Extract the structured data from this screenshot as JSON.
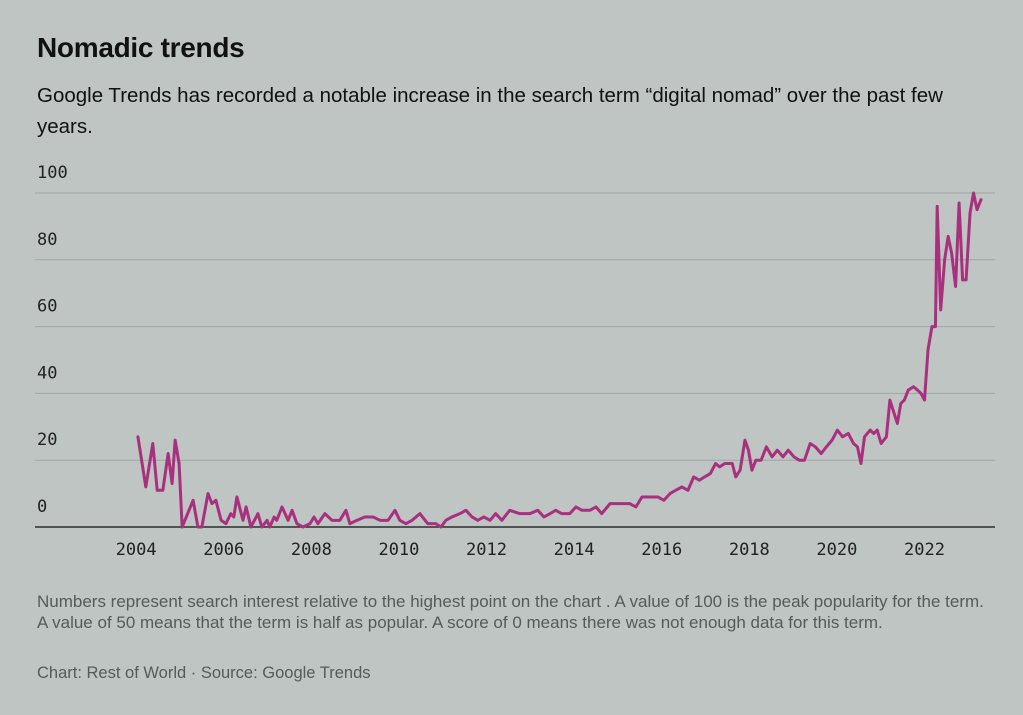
{
  "chart_data": {
    "type": "line",
    "title": "Nomadic trends",
    "subtitle": "Google Trends has recorded a notable increase in the search term “digital nomad” over the past few years.",
    "note": "Numbers represent search interest relative to the highest point on the chart . A value of 100 is the peak popularity for the term. A value of 50 means that the term is half as popular. A score of 0 means there was not enough data for this term.",
    "source": "Chart: Rest of World · Source: Google Trends",
    "color": "#a8307f",
    "x": [
      2004.04,
      2004.22,
      2004.38,
      2004.48,
      2004.61,
      2004.73,
      2004.82,
      2004.89,
      2004.98,
      2005.05,
      2005.3,
      2005.41,
      2005.5,
      2005.64,
      2005.73,
      2005.82,
      2005.94,
      2006.05,
      2006.16,
      2006.23,
      2006.3,
      2006.44,
      2006.51,
      2006.62,
      2006.78,
      2006.87,
      2006.99,
      2007.05,
      2007.15,
      2007.21,
      2007.33,
      2007.47,
      2007.56,
      2007.67,
      2007.81,
      2007.97,
      2008.06,
      2008.15,
      2008.31,
      2008.47,
      2008.65,
      2008.79,
      2008.88,
      2009.04,
      2009.22,
      2009.41,
      2009.57,
      2009.75,
      2009.91,
      2010.02,
      2010.16,
      2010.3,
      2010.48,
      2010.66,
      2010.84,
      2010.96,
      2011.07,
      2011.21,
      2011.39,
      2011.53,
      2011.67,
      2011.8,
      2011.94,
      2012.08,
      2012.21,
      2012.35,
      2012.53,
      2012.76,
      2012.99,
      2013.17,
      2013.31,
      2013.45,
      2013.58,
      2013.72,
      2013.9,
      2014.04,
      2014.18,
      2014.36,
      2014.5,
      2014.63,
      2014.82,
      2015.05,
      2015.27,
      2015.41,
      2015.55,
      2015.73,
      2015.91,
      2016.05,
      2016.19,
      2016.32,
      2016.46,
      2016.6,
      2016.73,
      2016.86,
      2016.98,
      2017.11,
      2017.23,
      2017.32,
      2017.44,
      2017.61,
      2017.69,
      2017.79,
      2017.9,
      2017.98,
      2018.06,
      2018.15,
      2018.27,
      2018.39,
      2018.52,
      2018.64,
      2018.77,
      2018.89,
      2019.02,
      2019.14,
      2019.26,
      2019.39,
      2019.51,
      2019.64,
      2019.76,
      2019.89,
      2020.01,
      2020.13,
      2020.26,
      2020.38,
      2020.47,
      2020.55,
      2020.63,
      2020.76,
      2020.84,
      2020.92,
      2021.01,
      2021.13,
      2021.21,
      2021.38,
      2021.46,
      2021.54,
      2021.63,
      2021.75,
      2021.84,
      2021.92,
      2022.0,
      2022.08,
      2022.17,
      2022.25,
      2022.29,
      2022.37,
      2022.46,
      2022.54,
      2022.62,
      2022.71,
      2022.79,
      2022.87,
      2022.95,
      2023.04,
      2023.12,
      2023.2,
      2023.29
    ],
    "values": [
      27,
      12,
      25,
      11,
      11,
      22,
      13,
      26,
      19,
      0,
      8,
      0,
      0,
      10,
      7,
      8,
      2,
      1,
      4,
      3,
      9,
      2,
      6,
      0,
      4,
      0,
      2,
      0,
      3,
      2,
      6,
      2,
      5,
      1,
      0,
      1,
      3,
      1,
      4,
      2,
      2,
      5,
      1,
      2,
      3,
      3,
      2,
      2,
      5,
      2,
      1,
      2,
      4,
      1,
      1,
      0,
      2,
      3,
      4,
      5,
      3,
      2,
      3,
      2,
      4,
      2,
      5,
      4,
      4,
      5,
      3,
      4,
      5,
      4,
      4,
      6,
      5,
      5,
      6,
      4,
      7,
      7,
      7,
      6,
      9,
      9,
      9,
      8,
      10,
      11,
      12,
      11,
      15,
      14,
      15,
      16,
      19,
      18,
      19,
      19,
      15,
      17,
      26,
      23,
      17,
      20,
      20,
      24,
      21,
      23,
      21,
      23,
      21,
      20,
      20,
      25,
      24,
      22,
      24,
      26,
      29,
      27,
      28,
      25,
      24,
      19,
      27,
      29,
      28,
      29,
      25,
      27,
      38,
      31,
      37,
      38,
      41,
      42,
      41,
      40,
      38,
      53,
      60,
      60,
      96,
      65,
      80,
      87,
      82,
      72,
      97,
      74,
      74,
      94,
      100,
      95,
      98
    ],
    "xlim": [
      2001.69,
      2023.61
    ],
    "xticks": [
      2004,
      2006,
      2008,
      2010,
      2012,
      2014,
      2016,
      2018,
      2020,
      2022
    ],
    "ylim": [
      0,
      100
    ],
    "yticks": [
      0,
      20,
      40,
      60,
      80,
      100
    ],
    "grid": true
  }
}
